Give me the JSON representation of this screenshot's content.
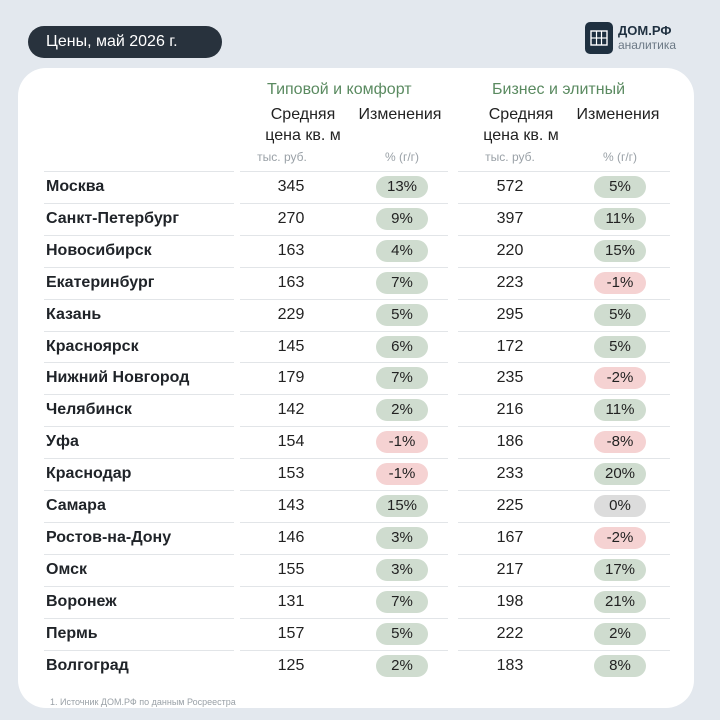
{
  "header": {
    "title": "Цены, май 2026 г."
  },
  "logo": {
    "name": "ДОМ.РФ",
    "subtitle": "аналитика"
  },
  "groups": [
    {
      "title": "Типовой и комфорт",
      "price_header": "Средняя\nцена кв. м",
      "change_header": "Изменения",
      "price_unit": "тыс. руб.",
      "change_unit": "% (г/г)"
    },
    {
      "title": "Бизнес и элитный",
      "price_header": "Средняя\nцена кв. м",
      "change_header": "Изменения",
      "price_unit": "тыс. руб.",
      "change_unit": "% (г/г)"
    }
  ],
  "rows": [
    {
      "city": "Москва",
      "p1": "345",
      "c1": "13%",
      "s1": "pos",
      "p2": "572",
      "c2": "5%",
      "s2": "pos"
    },
    {
      "city": "Санкт-Петербург",
      "p1": "270",
      "c1": "9%",
      "s1": "pos",
      "p2": "397",
      "c2": "11%",
      "s2": "pos"
    },
    {
      "city": "Новосибирск",
      "p1": "163",
      "c1": "4%",
      "s1": "pos",
      "p2": "220",
      "c2": "15%",
      "s2": "pos"
    },
    {
      "city": "Екатеринбург",
      "p1": "163",
      "c1": "7%",
      "s1": "pos",
      "p2": "223",
      "c2": "-1%",
      "s2": "neg"
    },
    {
      "city": "Казань",
      "p1": "229",
      "c1": "5%",
      "s1": "pos",
      "p2": "295",
      "c2": "5%",
      "s2": "pos"
    },
    {
      "city": "Красноярск",
      "p1": "145",
      "c1": "6%",
      "s1": "pos",
      "p2": "172",
      "c2": "5%",
      "s2": "pos"
    },
    {
      "city": "Нижний Новгород",
      "p1": "179",
      "c1": "7%",
      "s1": "pos",
      "p2": "235",
      "c2": "-2%",
      "s2": "neg"
    },
    {
      "city": "Челябинск",
      "p1": "142",
      "c1": "2%",
      "s1": "pos",
      "p2": "216",
      "c2": "11%",
      "s2": "pos"
    },
    {
      "city": "Уфа",
      "p1": "154",
      "c1": "-1%",
      "s1": "neg",
      "p2": "186",
      "c2": "-8%",
      "s2": "neg"
    },
    {
      "city": "Краснодар",
      "p1": "153",
      "c1": "-1%",
      "s1": "neg",
      "p2": "233",
      "c2": "20%",
      "s2": "pos"
    },
    {
      "city": "Самара",
      "p1": "143",
      "c1": "15%",
      "s1": "pos",
      "p2": "225",
      "c2": "0%",
      "s2": "zero"
    },
    {
      "city": "Ростов-на-Дону",
      "p1": "146",
      "c1": "3%",
      "s1": "pos",
      "p2": "167",
      "c2": "-2%",
      "s2": "neg"
    },
    {
      "city": "Омск",
      "p1": "155",
      "c1": "3%",
      "s1": "pos",
      "p2": "217",
      "c2": "17%",
      "s2": "pos"
    },
    {
      "city": "Воронеж",
      "p1": "131",
      "c1": "7%",
      "s1": "pos",
      "p2": "198",
      "c2": "21%",
      "s2": "pos"
    },
    {
      "city": "Пермь",
      "p1": "157",
      "c1": "5%",
      "s1": "pos",
      "p2": "222",
      "c2": "2%",
      "s2": "pos"
    },
    {
      "city": "Волгоград",
      "p1": "125",
      "c1": "2%",
      "s1": "pos",
      "p2": "183",
      "c2": "8%",
      "s2": "pos"
    }
  ],
  "footnote": "1. Источник ДОМ.РФ по данным Росреестра",
  "colors": {
    "positive": "#cfdccf",
    "negative": "#f5d2d2",
    "neutral": "#dcdcdc",
    "group_title": "#5a8a60",
    "pill": "#28323d"
  }
}
